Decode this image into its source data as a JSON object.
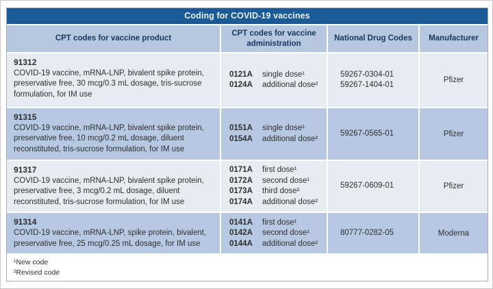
{
  "title": "Coding for COVID-19 vaccines",
  "columns": {
    "product": "CPT codes for vaccine product",
    "administration": "CPT codes for vaccine administration",
    "ndc": "National Drug Codes",
    "manufacturer": "Manufacturer"
  },
  "rows": [
    {
      "product_code": "91312",
      "product_description": "COVID-19 vaccine, mRNA-LNP, bivalent spike protein, preservative free, 30 mcg/0.3 mL dosage, tris-sucrose formulation, for IM use",
      "admin": [
        {
          "code": "0121A",
          "label": "single dose¹"
        },
        {
          "code": "0124A",
          "label": "additional dose²"
        }
      ],
      "ndc": [
        "59267-0304-01",
        "59267-1404-01"
      ],
      "manufacturer": "Pfizer"
    },
    {
      "product_code": "91315",
      "product_description": "COVID-19 vaccine, mRNA-LNP, bivalent spike protein, preservative free, 10 mcg/0.2 mL dosage, diluent reconstituted, tris-sucrose formulation, for IM use",
      "admin": [
        {
          "code": "0151A",
          "label": "single dose¹"
        },
        {
          "code": "0154A",
          "label": "additional dose²"
        }
      ],
      "ndc": [
        "59267-0565-01"
      ],
      "manufacturer": "Pfizer"
    },
    {
      "product_code": "91317",
      "product_description": "COVID-19 vaccine, mRNA-LNP, bivalent spike protein, preservative free, 3 mcg/0.2 mL dosage, diluent reconstituted, tris-sucrose formulation, for IM use",
      "admin": [
        {
          "code": "0171A",
          "label": "first dose¹"
        },
        {
          "code": "0172A",
          "label": "second dose¹"
        },
        {
          "code": "0173A",
          "label": "third dose²"
        },
        {
          "code": "0174A",
          "label": "additional dose²"
        }
      ],
      "ndc": [
        "59267-0609-01"
      ],
      "manufacturer": "Pfizer"
    },
    {
      "product_code": "91314",
      "product_description": "COVID-19 vaccine, mRNA-LNP, spike protein, bivalent, preservative free, 25 mcg/0.25 mL dosage, for IM use",
      "admin": [
        {
          "code": "0141A",
          "label": "first dose¹"
        },
        {
          "code": "0142A",
          "label": "second dose¹"
        },
        {
          "code": "0144A",
          "label": "additional dose²"
        }
      ],
      "ndc": [
        "80777-0282-05"
      ],
      "manufacturer": "Moderna"
    }
  ],
  "footnotes": [
    "¹New code",
    "²Revised code"
  ],
  "colors": {
    "title_bar_bg": "#1a5a96",
    "title_text": "#e9f1fb",
    "header_bg": "#b5c8e0",
    "header_text": "#17365d",
    "row_light": "#e7ebf2",
    "row_dark": "#b7c9e2",
    "body_text": "#2e2e2e",
    "table_border": "#a9adb3",
    "page_border": "#c6c6c6"
  }
}
